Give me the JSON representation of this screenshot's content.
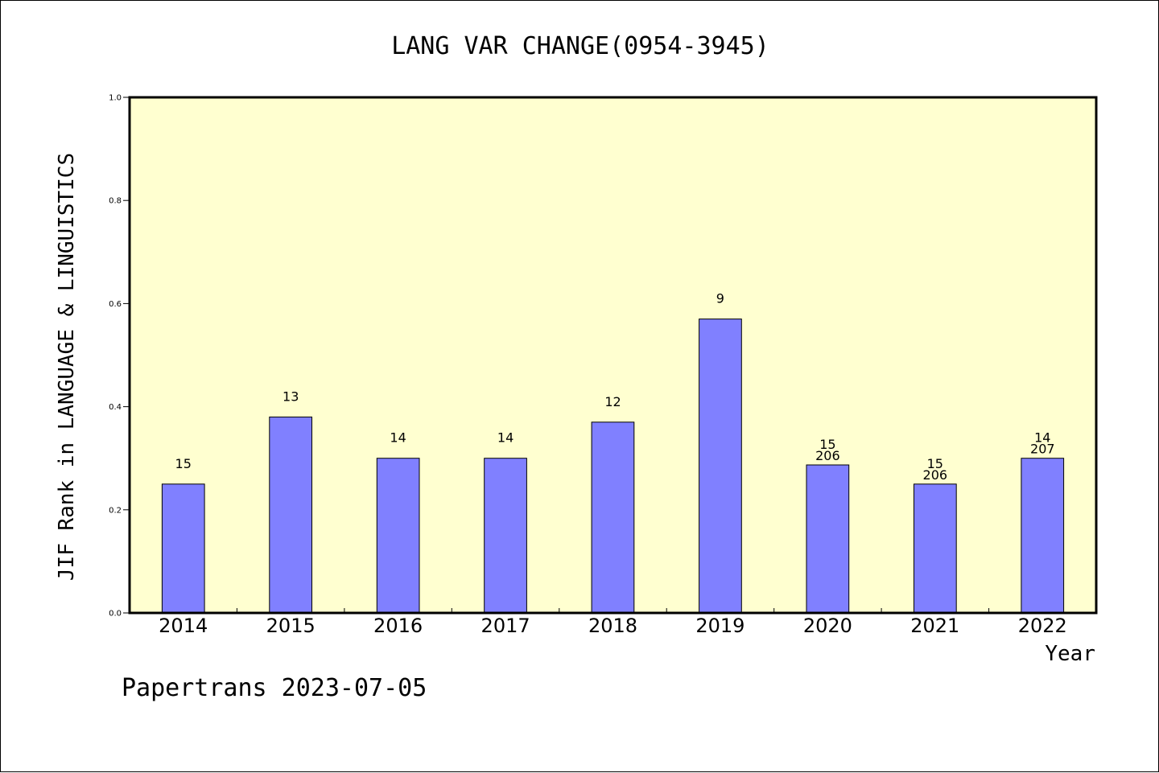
{
  "chart_data": {
    "type": "bar",
    "title": "LANG VAR CHANGE(0954-3945)",
    "ylabel": "JIF Rank in LANGUAGE & LINGUISTICS",
    "xlabel": "Year",
    "ylim": [
      0,
      1.0
    ],
    "yticks": [
      "0.0",
      "0.2",
      "0.4",
      "0.6",
      "0.8",
      "1.0"
    ],
    "categories": [
      "2014",
      "2015",
      "2016",
      "2017",
      "2018",
      "2019",
      "2020",
      "2021",
      "2022"
    ],
    "values": [
      0.25,
      0.38,
      0.3,
      0.3,
      0.37,
      0.57,
      0.287,
      0.25,
      0.3
    ],
    "rank_labels": [
      "15",
      "13",
      "14",
      "14",
      "12",
      "9",
      "15",
      "15",
      "14"
    ],
    "total_labels": [
      "",
      "",
      "",
      "",
      "",
      "",
      "206",
      "206",
      "207"
    ],
    "colors": {
      "bar": "#8080ff",
      "plot_background": "#ffffd0",
      "frame": "#000000"
    },
    "grid": false
  },
  "footer": "Papertrans 2023-07-05"
}
